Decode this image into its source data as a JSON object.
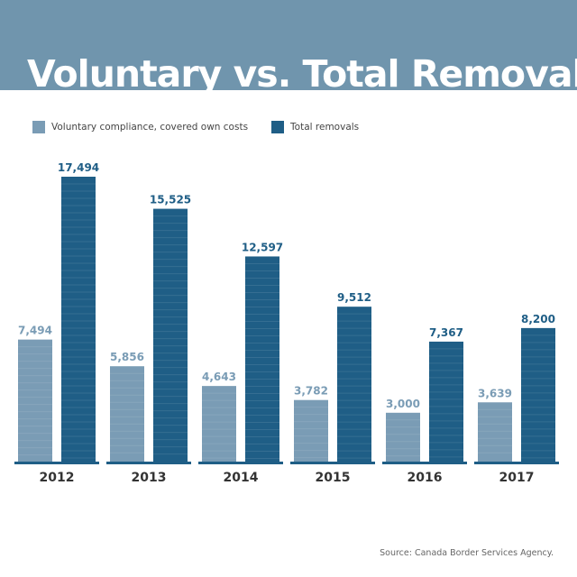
{
  "header": {
    "title": "Voluntary  vs. Total Removals"
  },
  "legend": [
    {
      "label": "Voluntary compliance, covered own costs",
      "color": "#7a9cb5"
    },
    {
      "label": "Total removals",
      "color": "#1f5e86"
    }
  ],
  "source": "Source: Canada Border Services Agency.",
  "colors": {
    "band": "#7095ad",
    "voluntary": "#7a9cb5",
    "total": "#1f5e86",
    "baseline": "#1f5e86"
  },
  "chart_data": {
    "type": "bar",
    "title": "Voluntary  vs. Total Removals",
    "categories": [
      "2012",
      "2013",
      "2014",
      "2015",
      "2016",
      "2017"
    ],
    "series": [
      {
        "name": "Voluntary compliance, covered own costs",
        "values": [
          7494,
          5856,
          4643,
          3782,
          3000,
          3639
        ],
        "labels": [
          "7,494",
          "5,856",
          "4,643",
          "3,782",
          "3,000",
          "3,639"
        ]
      },
      {
        "name": "Total removals",
        "values": [
          17494,
          15525,
          12597,
          9512,
          7367,
          8200
        ],
        "labels": [
          "17,494",
          "15,525",
          "12,597",
          "9,512",
          "7,367",
          "8,200"
        ]
      }
    ],
    "xlabel": "",
    "ylabel": "",
    "ylim": [
      0,
      17494
    ],
    "grid": false,
    "legend": "top-left"
  }
}
